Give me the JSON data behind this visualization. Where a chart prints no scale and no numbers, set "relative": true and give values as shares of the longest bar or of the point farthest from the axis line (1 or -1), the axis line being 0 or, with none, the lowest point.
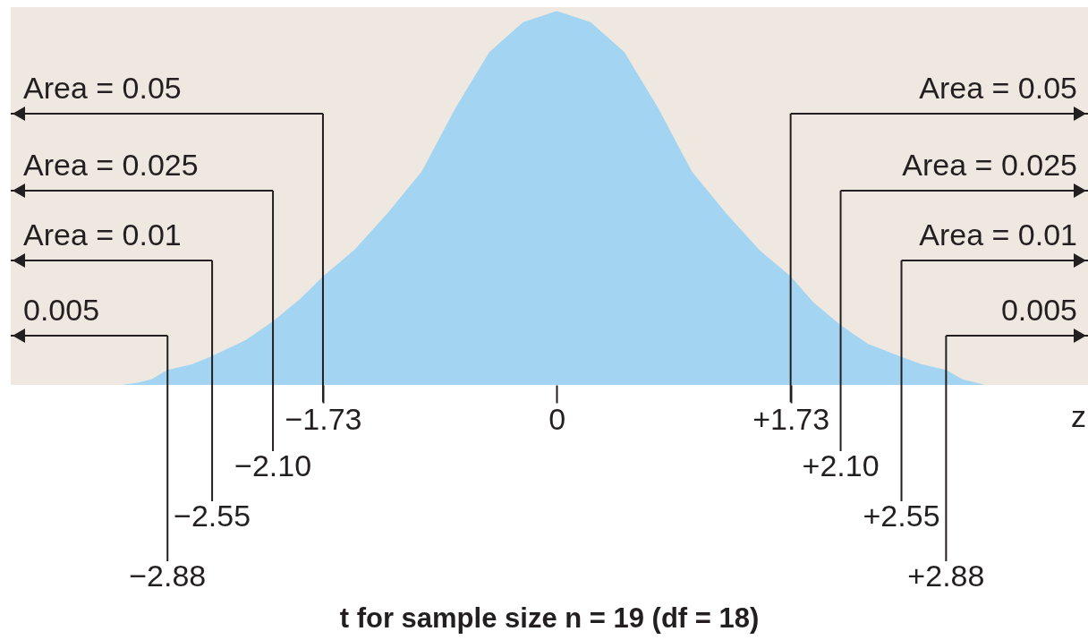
{
  "chart_data": {
    "type": "area",
    "relative": true,
    "x": [
      -3.22,
      -3.1,
      -3.0,
      -2.88,
      -2.7,
      -2.55,
      -2.3,
      -2.1,
      -1.9,
      -1.73,
      -1.5,
      -1.25,
      -1.0,
      -0.75,
      -0.5,
      -0.25,
      0,
      0.25,
      0.5,
      0.75,
      1.0,
      1.25,
      1.5,
      1.73,
      1.9,
      2.1,
      2.3,
      2.55,
      2.7,
      2.88,
      3.0,
      3.1,
      3.17
    ],
    "series": [
      {
        "color": "#a3d5f2",
        "values": [
          0,
          0.006,
          0.015,
          0.04,
          0.055,
          0.077,
          0.12,
          0.17,
          0.23,
          0.29,
          0.36,
          0.46,
          0.57,
          0.74,
          0.89,
          0.97,
          1,
          0.97,
          0.89,
          0.74,
          0.57,
          0.46,
          0.36,
          0.29,
          0.22,
          0.16,
          0.11,
          0.075,
          0.055,
          0.04,
          0.015,
          0.006,
          0
        ]
      }
    ],
    "xlim": [
      -4.04,
      3.93
    ],
    "xticks": [
      {
        "value": -1.73,
        "label": "−1.73"
      },
      0,
      {
        "value": 1.73,
        "label": "+1.73"
      }
    ],
    "ref_lines": [
      {
        "axis": "x",
        "value": -1.73,
        "color": "#231f20"
      },
      {
        "axis": "x",
        "value": -2.1,
        "label": "−2.10",
        "color": "#231f20"
      },
      {
        "axis": "x",
        "value": -2.55,
        "label": "−2.55",
        "color": "#231f20"
      },
      {
        "axis": "x",
        "value": -2.88,
        "label": "−2.88",
        "color": "#231f20"
      },
      {
        "axis": "x",
        "value": 1.73,
        "color": "#231f20"
      },
      {
        "axis": "x",
        "value": 2.1,
        "label": "+2.10",
        "color": "#231f20"
      },
      {
        "axis": "x",
        "value": 2.55,
        "label": "+2.55",
        "color": "#231f20"
      },
      {
        "axis": "x",
        "value": 2.88,
        "label": "+2.88",
        "color": "#231f20"
      }
    ],
    "annotations": [
      "Area = 0.05",
      "Area = 0.025",
      "Area = 0.01",
      "0.005",
      "Area = 0.05",
      "Area = 0.025",
      "Area = 0.01",
      "0.005",
      "z",
      "t for sample size n = 19 (df = 18)"
    ]
  }
}
